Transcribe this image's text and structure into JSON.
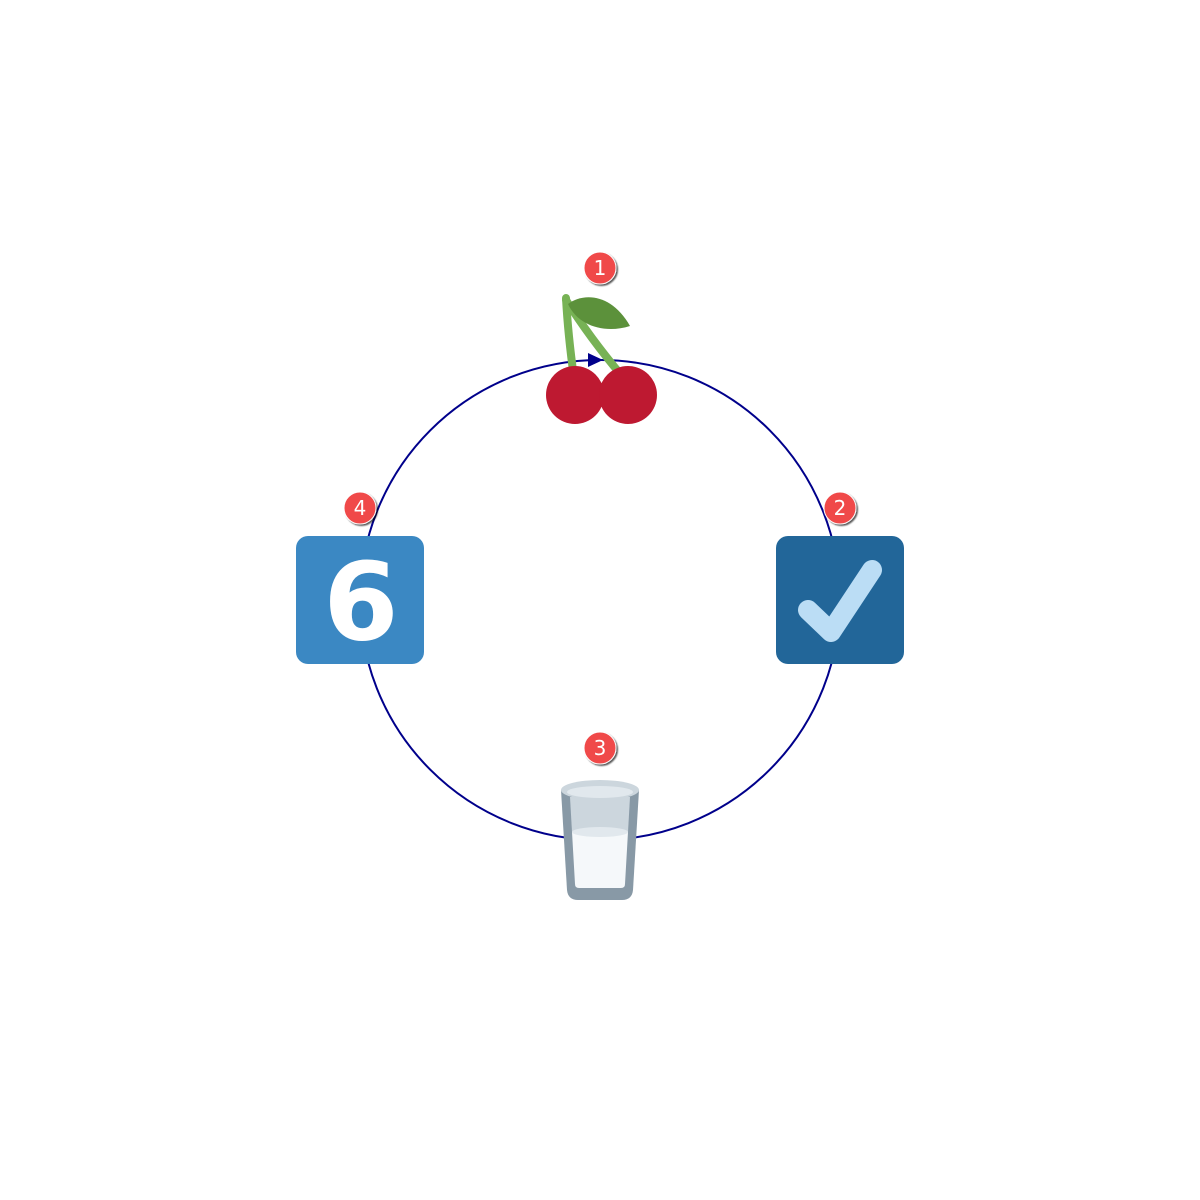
{
  "diagram": {
    "type": "cycle",
    "colors": {
      "ring": "#00008b",
      "badge_fill": "#f04848",
      "badge_text": "#ffffff",
      "cherry_red": "#be1931",
      "leaf_green": "#5c913b",
      "stem_green": "#77b255",
      "tile_blue_light": "#3b88c3",
      "tile_blue_dark": "#226699",
      "check_light": "#bbddf5",
      "glass_rim": "#ccd6dd",
      "glass_frame": "#8899a6",
      "milk": "#f5f8fa"
    },
    "nodes": [
      {
        "step": "1",
        "icon": "cherries-icon",
        "position": "top"
      },
      {
        "step": "2",
        "icon": "check-mark-button-icon",
        "position": "right"
      },
      {
        "step": "3",
        "icon": "glass-of-milk-icon",
        "position": "bottom"
      },
      {
        "step": "4",
        "icon": "keycap-six-icon",
        "position": "left",
        "glyph": "6"
      }
    ]
  }
}
